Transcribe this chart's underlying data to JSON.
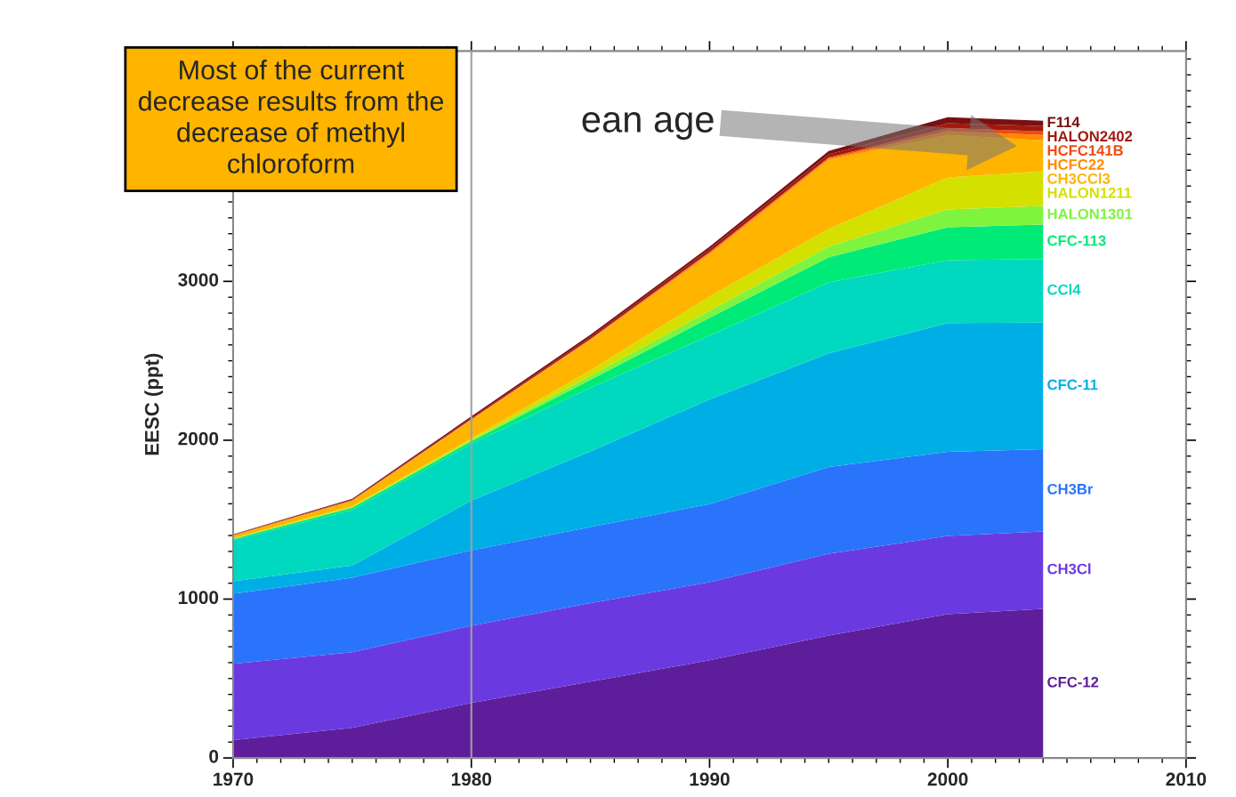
{
  "chart_data": {
    "type": "area",
    "stacked": true,
    "ylabel": "EESC (ppt)",
    "x": [
      1970,
      1975,
      1980,
      1985,
      1990,
      1995,
      2000,
      2004
    ],
    "xlim": [
      1970,
      2010
    ],
    "xticks": [
      1970,
      1980,
      1990,
      2000,
      2010
    ],
    "ylim": [
      0,
      4450
    ],
    "yticks": [
      0,
      1000,
      2000,
      3000
    ],
    "grid": false,
    "legend": false,
    "ref_lines": [
      {
        "axis": "x",
        "value": 1980,
        "color": "#a0a0a0"
      }
    ],
    "annotations": [
      "Most of the current\ndecrease results from the\ndecrease of methyl\nchloroform",
      "ean age"
    ],
    "series": [
      {
        "name": "CFC-12",
        "color": "#5e1d9a",
        "values": [
          112,
          190,
          346,
          480,
          615,
          771,
          905,
          939
        ]
      },
      {
        "name": "CH3Cl",
        "color": "#6a3ae0",
        "values": [
          480,
          475,
          486,
          495,
          491,
          514,
          492,
          486
        ]
      },
      {
        "name": "CH3Br",
        "color": "#2a74fb",
        "values": [
          442,
          469,
          475,
          478,
          492,
          547,
          530,
          519
        ]
      },
      {
        "name": "CFC-11",
        "color": "#00aee6",
        "values": [
          78,
          78,
          313,
          477,
          659,
          715,
          810,
          796
        ]
      },
      {
        "name": "CCl4",
        "color": "#00d9c0",
        "values": [
          257,
          348,
          358,
          400,
          402,
          447,
          397,
          400
        ]
      },
      {
        "name": "CFC-113",
        "color": "#00ea78",
        "values": [
          9,
          15,
          16,
          50,
          112,
          157,
          207,
          217
        ]
      },
      {
        "name": "HALON1301",
        "color": "#7ef43e",
        "values": [
          2,
          3,
          6,
          25,
          45,
          67,
          112,
          118
        ]
      },
      {
        "name": "HALON1211",
        "color": "#d4e000",
        "values": [
          3,
          7,
          12,
          35,
          89,
          112,
          201,
          218
        ]
      },
      {
        "name": "CH3CCl3",
        "color": "#ffb400",
        "values": [
          17,
          35,
          116,
          190,
          265,
          435,
          268,
          195
        ]
      },
      {
        "name": "HCFC22",
        "color": "#ff8a00",
        "values": [
          2,
          2,
          4,
          6,
          10,
          10,
          23,
          34
        ]
      },
      {
        "name": "HCFC141B",
        "color": "#f04a10",
        "values": [
          0,
          0,
          0,
          2,
          5,
          5,
          20,
          22
        ]
      },
      {
        "name": "HALON2402",
        "color": "#a01a10",
        "values": [
          2,
          4,
          8,
          12,
          20,
          20,
          30,
          34
        ]
      },
      {
        "name": "F114",
        "color": "#7a1010",
        "values": [
          4,
          6,
          10,
          15,
          13,
          21,
          39,
          33
        ]
      }
    ]
  }
}
